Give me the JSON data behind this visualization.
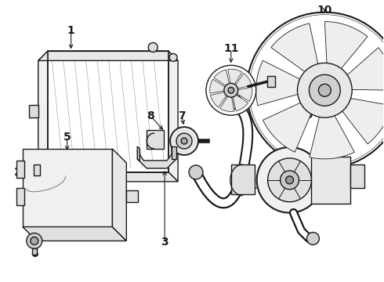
{
  "bg_color": "#ffffff",
  "lc": "#1a1a1a",
  "lw": 1.0,
  "fig_w": 4.9,
  "fig_h": 3.6,
  "dpi": 100
}
